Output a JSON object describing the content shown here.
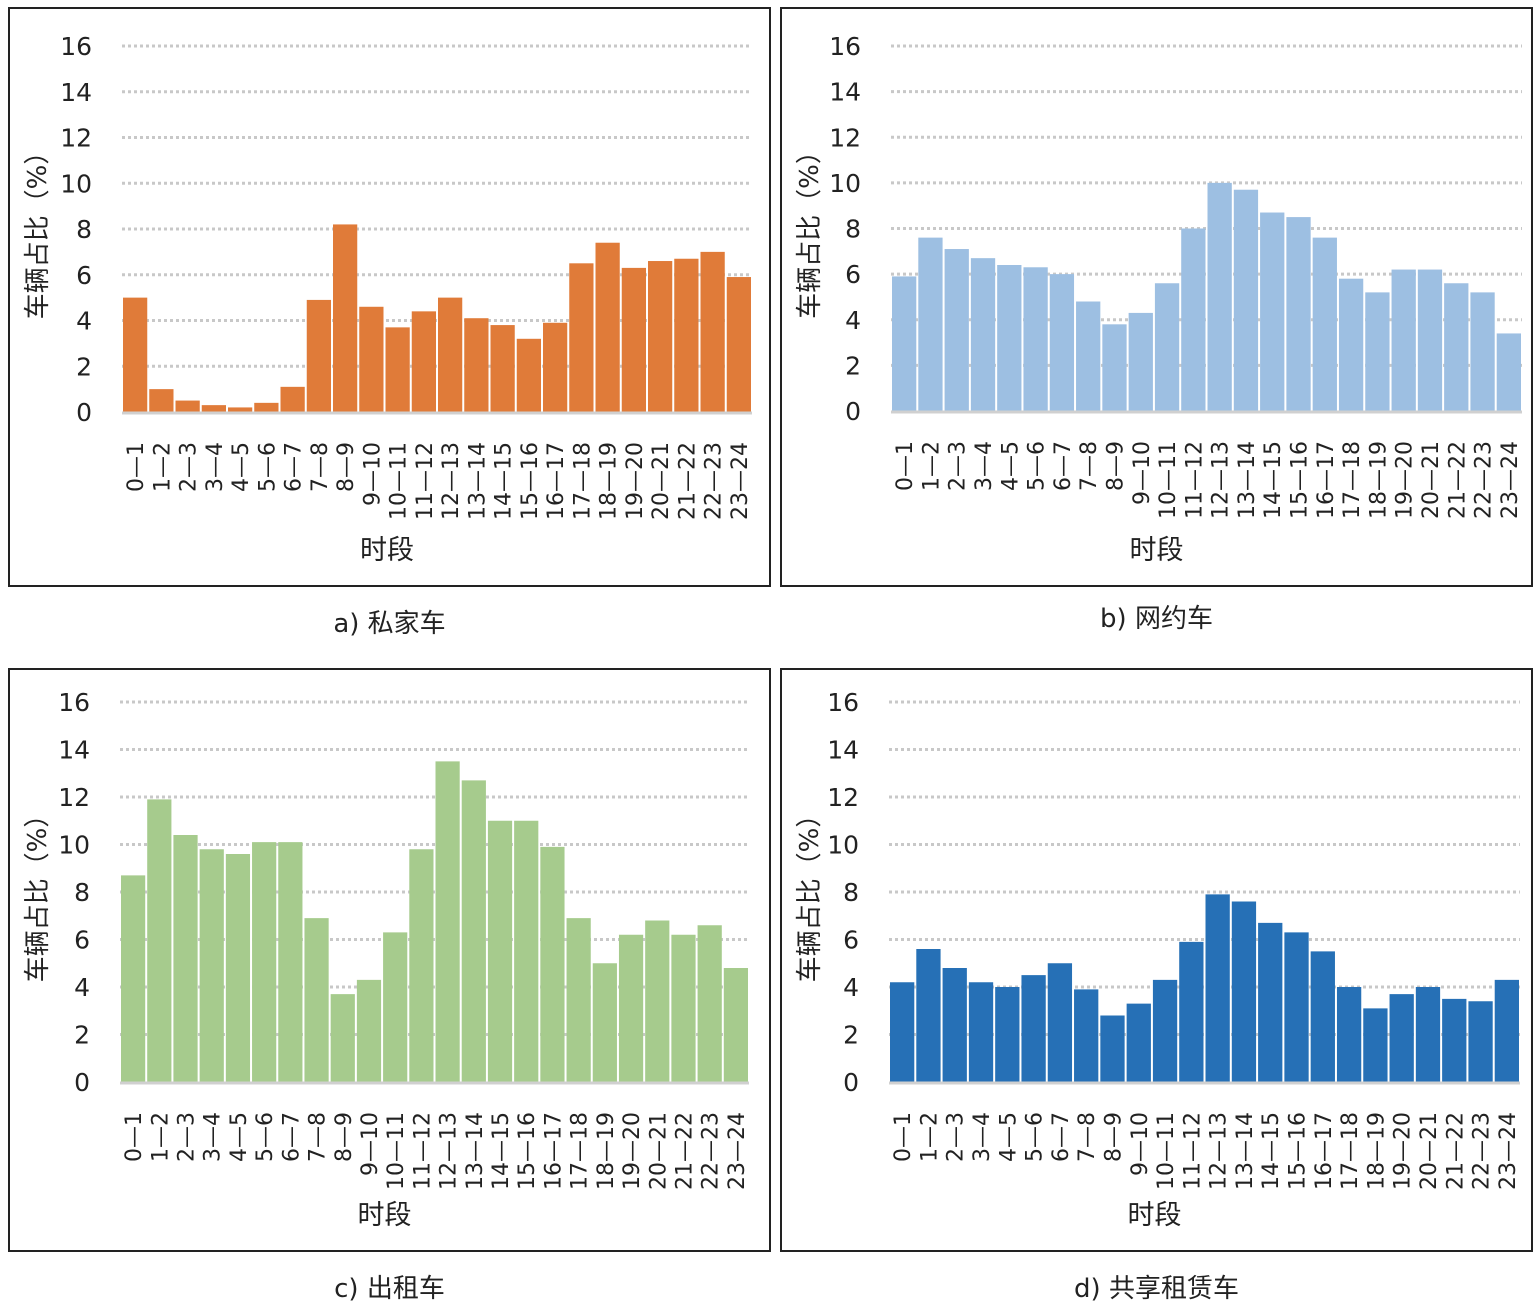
{
  "axis_text": {
    "ylabel": "车辆占比（%）",
    "xlabel": "时段"
  },
  "chart_data": [
    {
      "type": "bar",
      "caption": "a) 私家车",
      "xlabel": "时段",
      "ylabel": "车辆占比（%）",
      "ylim": [
        0,
        16
      ],
      "yticks": [
        0,
        2,
        4,
        6,
        8,
        10,
        12,
        14,
        16
      ],
      "grid": true,
      "color": "#E07B39",
      "categories": [
        "0—1",
        "1—2",
        "2—3",
        "3—4",
        "4—5",
        "5—6",
        "6—7",
        "7—8",
        "8—9",
        "9—10",
        "10—11",
        "11—12",
        "12—13",
        "13—14",
        "14—15",
        "15—16",
        "16—17",
        "17—18",
        "18—19",
        "19—20",
        "20—21",
        "21—22",
        "22—23",
        "23—24"
      ],
      "values": [
        5.0,
        1.0,
        0.5,
        0.3,
        0.2,
        0.4,
        1.1,
        4.9,
        8.2,
        4.6,
        3.7,
        4.4,
        5.0,
        4.1,
        3.8,
        3.2,
        3.9,
        6.5,
        7.4,
        6.3,
        6.6,
        6.7,
        7.0,
        5.9
      ]
    },
    {
      "type": "bar",
      "caption": "b) 网约车",
      "xlabel": "时段",
      "ylabel": "车辆占比（%）",
      "ylim": [
        0,
        16
      ],
      "yticks": [
        0,
        2,
        4,
        6,
        8,
        10,
        12,
        14,
        16
      ],
      "grid": true,
      "color": "#9DBFE2",
      "categories": [
        "0—1",
        "1—2",
        "2—3",
        "3—4",
        "4—5",
        "5—6",
        "6—7",
        "7—8",
        "8—9",
        "9—10",
        "10—11",
        "11—12",
        "12—13",
        "13—14",
        "14—15",
        "15—16",
        "16—17",
        "17—18",
        "18—19",
        "19—20",
        "20—21",
        "21—22",
        "22—23",
        "23—24"
      ],
      "values": [
        5.9,
        7.6,
        7.1,
        6.7,
        6.4,
        6.3,
        6.0,
        4.8,
        3.8,
        4.3,
        5.6,
        8.0,
        10.0,
        9.7,
        8.7,
        8.5,
        7.6,
        5.8,
        5.2,
        6.2,
        6.2,
        5.6,
        5.2,
        3.4
      ]
    },
    {
      "type": "bar",
      "caption": "c) 出租车",
      "xlabel": "时段",
      "ylabel": "车辆占比（%）",
      "ylim": [
        0,
        16
      ],
      "yticks": [
        0,
        2,
        4,
        6,
        8,
        10,
        12,
        14,
        16
      ],
      "grid": true,
      "color": "#A6CB8D",
      "categories": [
        "0—1",
        "1—2",
        "2—3",
        "3—4",
        "4—5",
        "5—6",
        "6—7",
        "7—8",
        "8—9",
        "9—10",
        "10—11",
        "11—12",
        "12—13",
        "13—14",
        "14—15",
        "15—16",
        "16—17",
        "17—18",
        "18—19",
        "19—20",
        "20—21",
        "21—22",
        "22—23",
        "23—24"
      ],
      "values": [
        8.7,
        11.9,
        10.4,
        9.8,
        9.6,
        10.1,
        10.1,
        6.9,
        3.7,
        4.3,
        6.3,
        9.8,
        13.5,
        12.7,
        11.0,
        11.0,
        9.9,
        6.9,
        5.0,
        6.2,
        6.8,
        6.2,
        6.6,
        4.8
      ]
    },
    {
      "type": "bar",
      "caption": "d) 共享租赁车",
      "xlabel": "时段",
      "ylabel": "车辆占比（%）",
      "ylim": [
        0,
        16
      ],
      "yticks": [
        0,
        2,
        4,
        6,
        8,
        10,
        12,
        14,
        16
      ],
      "grid": true,
      "color": "#2670B6",
      "categories": [
        "0—1",
        "1—2",
        "2—3",
        "3—4",
        "4—5",
        "5—6",
        "6—7",
        "7—8",
        "8—9",
        "9—10",
        "10—11",
        "11—12",
        "12—13",
        "13—14",
        "14—15",
        "15—16",
        "16—17",
        "17—18",
        "18—19",
        "19—20",
        "20—21",
        "21—22",
        "22—23",
        "23—24"
      ],
      "values": [
        4.2,
        5.6,
        4.8,
        4.2,
        4.0,
        4.5,
        5.0,
        3.9,
        2.8,
        3.3,
        4.3,
        5.9,
        7.9,
        7.6,
        6.7,
        6.3,
        5.5,
        4.0,
        3.1,
        3.7,
        4.0,
        3.5,
        3.4,
        4.3
      ]
    }
  ]
}
